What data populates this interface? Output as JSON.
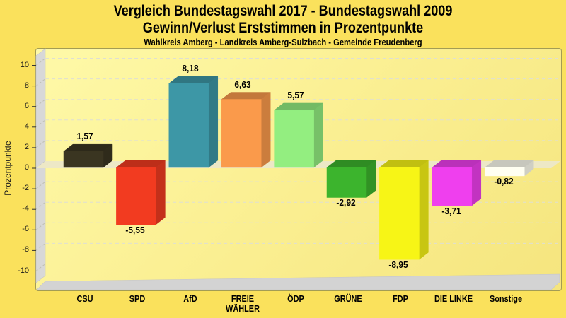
{
  "page": {
    "title_line1": "Vergleich Bundestagswahl 2017 - Bundestagswahl 2009",
    "title_line2": "Gewinn/Verlust Erststimmen in Prozentpunkte",
    "subtitle": "Wahlkreis Amberg - Landkreis Amberg-Sulzbach - Gemeinde Freudenberg"
  },
  "colors": {
    "page_background": "#FAE15C",
    "plot_border": "#A39C55",
    "plot_background_light": "#FEF9A8",
    "plot_background_dark": "#F5E57E",
    "left_wall": "#D8D8D8",
    "floor": "#D3D3D3",
    "zero_band": "#EDE8C6",
    "gridline": "#DFDFD2",
    "tick": "#333333",
    "text": "#000000"
  },
  "chart_data": {
    "type": "bar",
    "style": "3d-bars",
    "title": "Vergleich Bundestagswahl 2017 - Bundestagswahl 2009 — Gewinn/Verlust Erststimmen in Prozentpunkte",
    "subtitle": "Wahlkreis Amberg - Landkreis Amberg-Sulzbach - Gemeinde Freudenberg",
    "xlabel": "",
    "ylabel": "Prozentpunkte",
    "ylim": [
      -11,
      11
    ],
    "yticks": [
      10,
      8,
      6,
      4,
      2,
      0,
      -2,
      -4,
      -6,
      -8,
      -10
    ],
    "grid": true,
    "legend": false,
    "categories": [
      "CSU",
      "SPD",
      "AfD",
      "FREIE WÄHLER",
      "ÖDP",
      "GRÜNE",
      "FDP",
      "DIE LINKE",
      "Sonstige"
    ],
    "values": [
      1.57,
      -5.55,
      8.18,
      6.63,
      5.57,
      -2.92,
      -8.95,
      -3.71,
      -0.82
    ],
    "value_labels": [
      "1,57",
      "-5,55",
      "8,18",
      "6,63",
      "5,57",
      "-2,92",
      "-8,95",
      "-3,71",
      "-0,82"
    ],
    "bar_colors": [
      "#3A3521",
      "#F23B20",
      "#3D97A6",
      "#FA9A4B",
      "#93EE80",
      "#3CB42D",
      "#F7F516",
      "#EF3FEE",
      "#FFFFF2"
    ]
  }
}
